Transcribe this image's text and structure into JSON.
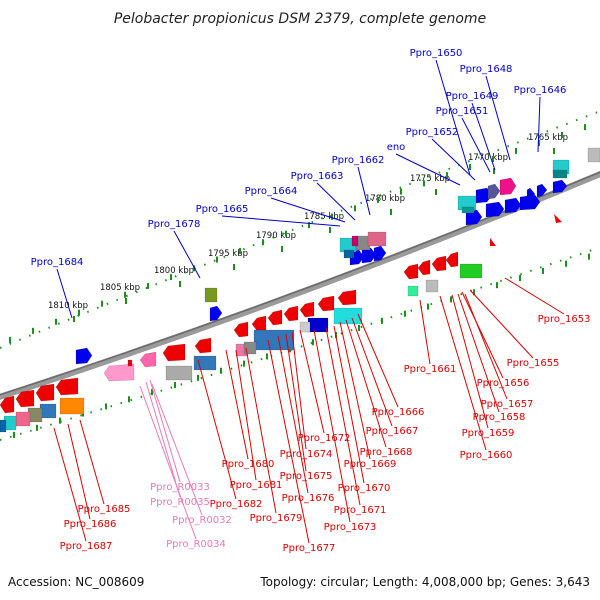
{
  "title": "Pelobacter propionicus DSM 2379, complete genome",
  "footer": {
    "accession": "Accession: NC_008609",
    "summary": "Topology: circular; Length: 4,008,000 bp; Genes: 3,643"
  },
  "colors": {
    "forward_label": "#0000cc",
    "reverse_label": "#dd0000",
    "rna_label": "#e87ab6",
    "backbone": "#808080",
    "tick": "#1a8f1a"
  },
  "kbp_labels": [
    "1765 kbp",
    "1770 kbp",
    "1775 kbp",
    "1780 kbp",
    "1785 kbp",
    "1790 kbp",
    "1795 kbp",
    "1800 kbp",
    "1805 kbp",
    "1810 kbp"
  ],
  "forward_labels": [
    "Ppro_1650",
    "Ppro_1648",
    "Ppro_1649",
    "Ppro_1646",
    "Ppro_1651",
    "Ppro_1652",
    "eno",
    "Ppro_1662",
    "Ppro_1663",
    "Ppro_1664",
    "Ppro_1665",
    "Ppro_1678",
    "Ppro_1684"
  ],
  "reverse_labels": [
    "Ppro_1653",
    "Ppro_1655",
    "Ppro_1661",
    "Ppro_1656",
    "Ppro_1657",
    "Ppro_1658",
    "Ppro_1659",
    "Ppro_1660",
    "Ppro_1666",
    "Ppro_1667",
    "Ppro_1668",
    "Ppro_1672",
    "Ppro_1674",
    "Ppro_1669",
    "Ppro_1675",
    "Ppro_1670",
    "Ppro_1676",
    "Ppro_1671",
    "Ppro_1673",
    "Ppro_1677",
    "Ppro_1679",
    "Ppro_1680",
    "Ppro_1681",
    "Ppro_1682",
    "Ppro_1685",
    "Ppro_1686",
    "Ppro_1687"
  ],
  "rna_labels": [
    "Ppro_R0033",
    "Ppro_R0035",
    "Ppro_R0032",
    "Ppro_R0034"
  ]
}
